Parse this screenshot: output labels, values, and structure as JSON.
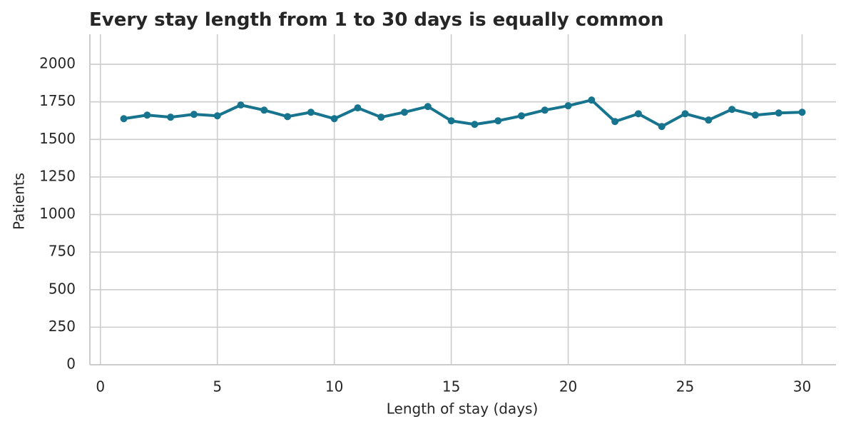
{
  "chart_data": {
    "type": "line",
    "title": "Every stay length from 1 to 30 days is equally common",
    "x_label": "Length of stay (days)",
    "y_label": "Patients",
    "x": [
      1,
      2,
      3,
      4,
      5,
      6,
      7,
      8,
      9,
      10,
      11,
      12,
      13,
      14,
      15,
      16,
      17,
      18,
      19,
      20,
      21,
      22,
      23,
      24,
      25,
      26,
      27,
      28,
      29,
      30
    ],
    "series": [
      {
        "name": "Patients",
        "color": "#17748f",
        "values": [
          1638,
          1662,
          1648,
          1667,
          1657,
          1729,
          1695,
          1652,
          1681,
          1638,
          1710,
          1648,
          1681,
          1719,
          1624,
          1600,
          1624,
          1657,
          1695,
          1724,
          1762,
          1619,
          1671,
          1586,
          1671,
          1629,
          1700,
          1662,
          1676,
          1681
        ]
      }
    ],
    "xlim": [
      -0.45,
      31.45
    ],
    "xticks": [
      0,
      5,
      10,
      15,
      20,
      25,
      30
    ],
    "ylim": [
      0,
      2200
    ],
    "yticks": [
      0,
      250,
      500,
      750,
      1000,
      1250,
      1500,
      1750,
      2000
    ],
    "grid": true
  }
}
